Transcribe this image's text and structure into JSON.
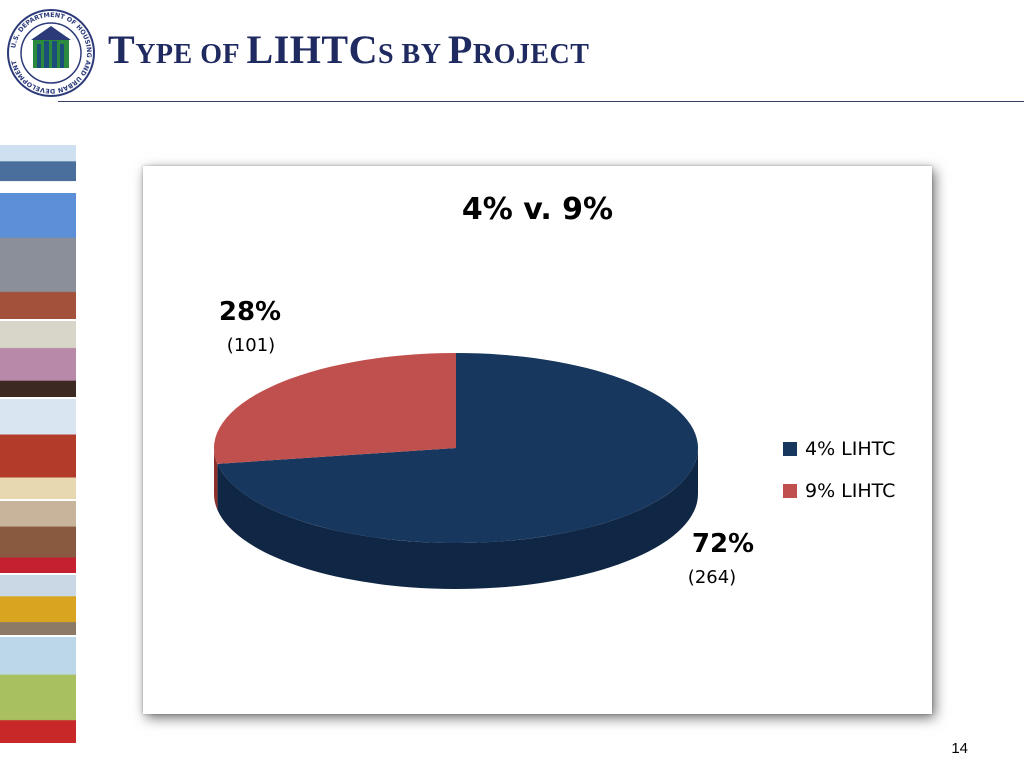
{
  "slide": {
    "title_parts": [
      {
        "text": "T",
        "small": false
      },
      {
        "text": "YPE OF ",
        "small": true
      },
      {
        "text": "LIHTC",
        "small": false
      },
      {
        "text": "S BY ",
        "small": true
      },
      {
        "text": "P",
        "small": false
      },
      {
        "text": "ROJECT",
        "small": true
      }
    ],
    "page_number": "14"
  },
  "logo": {
    "text": "U.S. DEPARTMENT OF HOUSING AND URBAN DEVELOPMENT",
    "ring_color": "#2c3a7a",
    "inner_color": "#2b8a3e"
  },
  "photos": [
    {
      "name": "photo-house",
      "sky": "#cfe0f0",
      "main": "#4a6f9c",
      "accent": "#ffffff"
    },
    {
      "name": "photo-city-skyline",
      "sky": "#5b8fd8",
      "main": "#8a8f99",
      "accent": "#a3513a"
    },
    {
      "name": "photo-resident",
      "sky": "#d8d6c8",
      "main": "#b889a8",
      "accent": "#3c2a22"
    },
    {
      "name": "photo-brick-building",
      "sky": "#d9e6f2",
      "main": "#b23b2a",
      "accent": "#e8d8b0"
    },
    {
      "name": "photo-family",
      "sky": "#c8b49a",
      "main": "#8a5a40",
      "accent": "#c42030"
    },
    {
      "name": "photo-construction",
      "sky": "#c9d8e4",
      "main": "#d9a520",
      "accent": "#8c7a66"
    },
    {
      "name": "photo-storefront",
      "sky": "#bcd8e8",
      "main": "#a8c060",
      "accent": "#c82828"
    }
  ],
  "chart_data": {
    "type": "pie",
    "title": "4% v. 9%",
    "slices": [
      {
        "name": "4% LIHTC",
        "percent_label": "72%",
        "count_label": "(264)",
        "value": 264,
        "color": "#17375e",
        "side_color": "#0f2644"
      },
      {
        "name": "9% LIHTC",
        "percent_label": "28%",
        "count_label": "(101)",
        "value": 101,
        "color": "#c0504d",
        "side_color": "#8c2f2c"
      }
    ],
    "legend": [
      {
        "label": "4% LIHTC",
        "color": "#17375e"
      },
      {
        "label": "9% LIHTC",
        "color": "#c0504d"
      }
    ],
    "legend_position": "right",
    "three_d": true
  }
}
